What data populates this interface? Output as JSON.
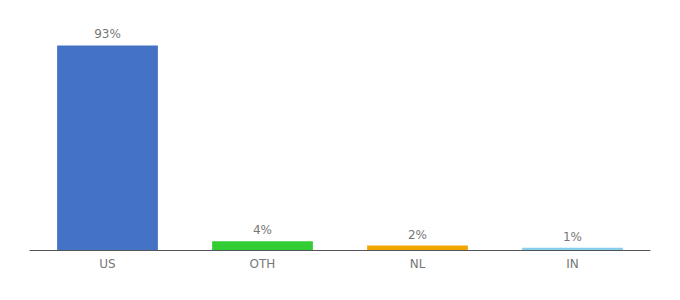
{
  "chart_data": {
    "type": "bar",
    "categories": [
      "US",
      "OTH",
      "NL",
      "IN"
    ],
    "values": [
      93,
      4,
      2,
      1
    ],
    "value_labels": [
      "93%",
      "4%",
      "2%",
      "1%"
    ],
    "data_labels": true,
    "colors": [
      "#4472c4",
      "#32cd32",
      "#f0a500",
      "#87ceeb"
    ],
    "ylim": [
      0,
      100
    ],
    "grid": false,
    "tick_labels": "x"
  }
}
